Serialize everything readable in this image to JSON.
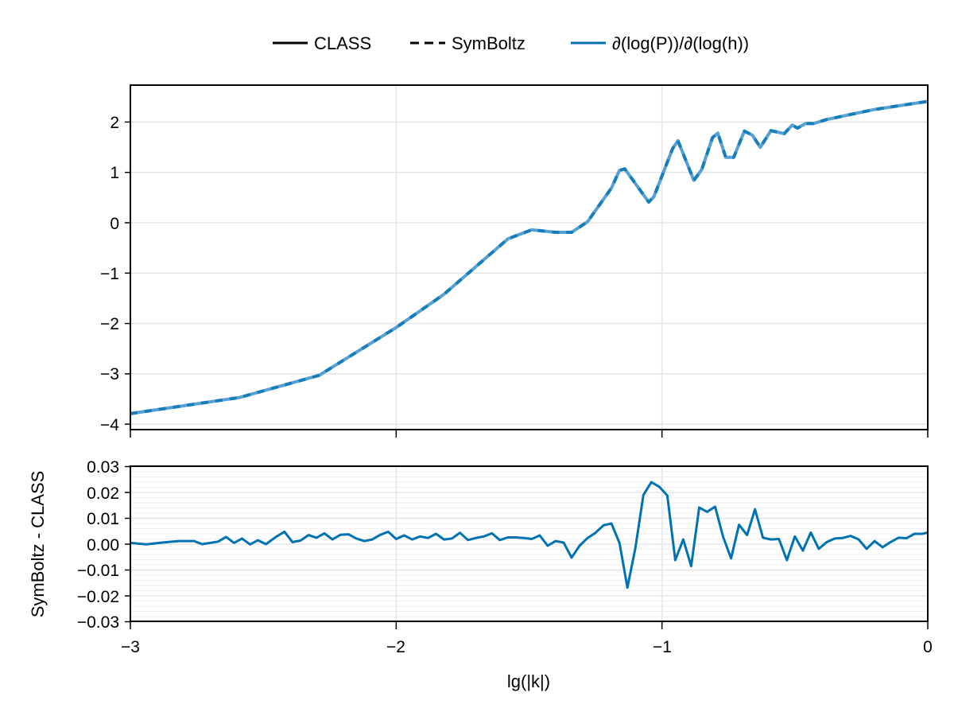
{
  "legend": {
    "items": [
      {
        "label": "CLASS",
        "style": "solid",
        "color": "#000000"
      },
      {
        "label": "SymBoltz",
        "style": "dashed",
        "color": "#000000"
      },
      {
        "label": "∂(log(P))/∂(log(h))",
        "style": "solid",
        "color": "#0072b2"
      }
    ]
  },
  "colors": {
    "series": "#0072b2",
    "series_light": "#56a0d3",
    "grid": "#e5e5e5",
    "axis": "#000000"
  },
  "chart_data": [
    {
      "type": "line",
      "title": "",
      "xlabel": "",
      "ylabel": "",
      "xlim": [
        -3,
        0
      ],
      "ylim": [
        -4.1,
        2.7
      ],
      "x_ticks": [
        -3,
        -2,
        -1,
        0
      ],
      "y_ticks": [
        -4,
        -3,
        -2,
        -1,
        0,
        1,
        2
      ],
      "y_tick_labels": [
        "−4",
        "−3",
        "−2",
        "−1",
        "0",
        "1",
        "2"
      ],
      "grid": true,
      "legend_position": "top",
      "series": [
        {
          "name": "CLASS / SymBoltz ∂(log(P))/∂(log(h))",
          "x": [
            -3.0,
            -2.59,
            -2.29,
            -2.0,
            -1.82,
            -1.7,
            -1.58,
            -1.49,
            -1.4,
            -1.34,
            -1.28,
            -1.19,
            -1.16,
            -1.14,
            -1.05,
            -1.03,
            -0.96,
            -0.94,
            -0.88,
            -0.85,
            -0.81,
            -0.79,
            -0.76,
            -0.73,
            -0.69,
            -0.66,
            -0.63,
            -0.59,
            -0.54,
            -0.51,
            -0.49,
            -0.46,
            -0.43,
            -0.38,
            -0.2,
            0.0
          ],
          "y": [
            -3.79,
            -3.47,
            -3.03,
            -2.08,
            -1.42,
            -0.87,
            -0.32,
            -0.14,
            -0.19,
            -0.19,
            0.02,
            0.69,
            1.04,
            1.07,
            0.41,
            0.52,
            1.47,
            1.63,
            0.84,
            1.06,
            1.69,
            1.78,
            1.3,
            1.3,
            1.82,
            1.74,
            1.5,
            1.83,
            1.77,
            1.94,
            1.88,
            1.97,
            1.97,
            2.05,
            2.25,
            2.41
          ]
        }
      ]
    },
    {
      "type": "line",
      "title": "",
      "xlabel": "lg(|k|)",
      "ylabel": "SymBoltz - CLASS",
      "xlim": [
        -3,
        0
      ],
      "ylim": [
        -0.03,
        0.03
      ],
      "x_ticks": [
        -3,
        -2,
        -1,
        0
      ],
      "x_tick_labels": [
        "−3",
        "−2",
        "−1",
        "0"
      ],
      "y_ticks": [
        -0.03,
        -0.02,
        -0.01,
        0.0,
        0.01,
        0.02,
        0.03
      ],
      "y_tick_labels": [
        "−0.03",
        "−0.02",
        "−0.01",
        "0.00",
        "0.01",
        "0.02",
        "0.03"
      ],
      "grid": true,
      "series": [
        {
          "name": "SymBoltz - CLASS",
          "x": [
            -3.0,
            -2.94,
            -2.88,
            -2.82,
            -2.76,
            -2.73,
            -2.67,
            -2.64,
            -2.61,
            -2.58,
            -2.55,
            -2.52,
            -2.49,
            -2.45,
            -2.42,
            -2.39,
            -2.36,
            -2.33,
            -2.3,
            -2.27,
            -2.24,
            -2.21,
            -2.18,
            -2.15,
            -2.12,
            -2.09,
            -2.06,
            -2.03,
            -2.0,
            -1.97,
            -1.94,
            -1.91,
            -1.88,
            -1.85,
            -1.82,
            -1.79,
            -1.76,
            -1.73,
            -1.7,
            -1.67,
            -1.64,
            -1.61,
            -1.58,
            -1.55,
            -1.52,
            -1.49,
            -1.46,
            -1.43,
            -1.4,
            -1.37,
            -1.34,
            -1.31,
            -1.28,
            -1.25,
            -1.22,
            -1.19,
            -1.16,
            -1.13,
            -1.1,
            -1.07,
            -1.04,
            -1.01,
            -0.98,
            -0.95,
            -0.92,
            -0.89,
            -0.86,
            -0.83,
            -0.8,
            -0.77,
            -0.74,
            -0.71,
            -0.68,
            -0.65,
            -0.62,
            -0.59,
            -0.56,
            -0.53,
            -0.5,
            -0.47,
            -0.44,
            -0.41,
            -0.38,
            -0.35,
            -0.32,
            -0.29,
            -0.26,
            -0.23,
            -0.2,
            -0.17,
            -0.14,
            -0.11,
            -0.08,
            -0.05,
            -0.02,
            0.0
          ],
          "y": [
            0.0005,
            -0.0001,
            0.0006,
            0.0012,
            0.0012,
            0.0,
            0.001,
            0.0028,
            0.0005,
            0.0022,
            -0.0001,
            0.0015,
            0.0,
            0.003,
            0.0048,
            0.0008,
            0.0014,
            0.0035,
            0.0025,
            0.0042,
            0.0018,
            0.0036,
            0.0038,
            0.0022,
            0.0012,
            0.0018,
            0.0036,
            0.0048,
            0.002,
            0.0034,
            0.0018,
            0.003,
            0.0024,
            0.004,
            0.0018,
            0.0022,
            0.0044,
            0.0016,
            0.0024,
            0.003,
            0.0042,
            0.0016,
            0.0026,
            0.0026,
            0.0024,
            0.002,
            0.0034,
            -0.0006,
            0.0012,
            0.0006,
            -0.0052,
            -0.0006,
            0.0024,
            0.0044,
            0.0073,
            0.008,
            0.0005,
            -0.0168,
            -0.0015,
            0.019,
            0.024,
            0.0222,
            0.0188,
            -0.0062,
            0.0018,
            -0.0085,
            0.0142,
            0.0125,
            0.0145,
            0.0028,
            -0.0055,
            0.0075,
            0.0035,
            0.0135,
            0.0025,
            0.0018,
            0.002,
            -0.0062,
            0.003,
            -0.0025,
            0.0045,
            -0.0018,
            0.0008,
            0.0022,
            0.0024,
            0.0032,
            0.0018,
            -0.0018,
            0.0012,
            -0.0012,
            0.0008,
            0.0025,
            0.0023,
            0.004,
            0.004,
            0.0045
          ]
        }
      ]
    }
  ],
  "top_plot": {
    "y_tick_labels": [
      "2",
      "1",
      "0",
      "−1",
      "−2",
      "−3",
      "−4"
    ]
  },
  "bottom_plot": {
    "ylabel": "SymBoltz - CLASS",
    "y_tick_labels": [
      "0.03",
      "0.02",
      "0.01",
      "0.00",
      "−0.01",
      "−0.02",
      "−0.03"
    ],
    "x_tick_labels": [
      "−3",
      "−2",
      "−1",
      "0"
    ],
    "xlabel": "lg(|k|)"
  }
}
